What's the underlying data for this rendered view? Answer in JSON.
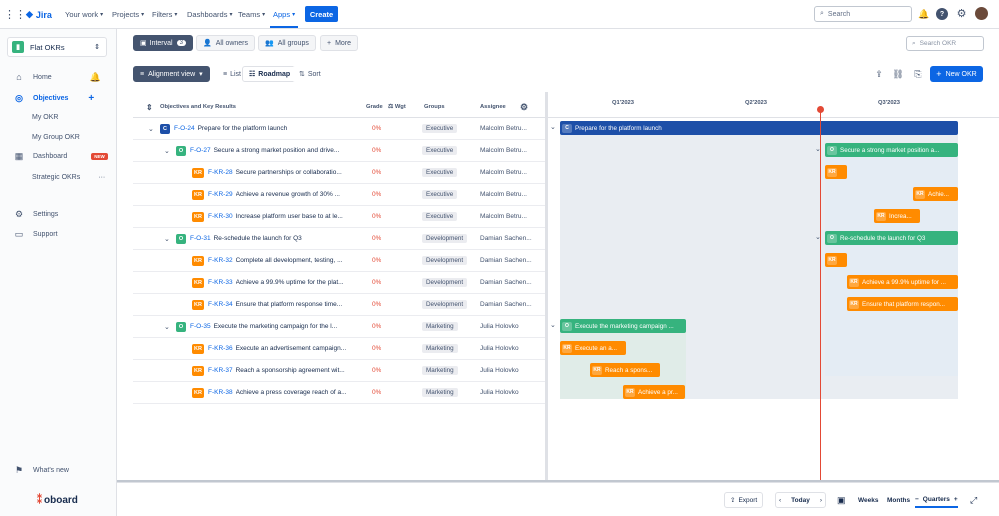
{
  "topbar": {
    "app_name": "Jira",
    "nav": [
      "Your work",
      "Projects",
      "Filters",
      "Dashboards",
      "Teams",
      "Apps"
    ],
    "create": "Create",
    "search_placeholder": "Search"
  },
  "sidebar": {
    "project": "Flat OKRs",
    "items": {
      "home": "Home",
      "objectives": "Objectives",
      "my_okr": "My OKR",
      "my_group_okr": "My Group OKR",
      "dashboard": "Dashboard",
      "dashboard_badge": "NEW",
      "strategic": "Strategic OKRs",
      "settings": "Settings",
      "support": "Support",
      "whats_new": "What's new"
    },
    "brand": "oboard"
  },
  "toolbar": {
    "interval": "Interval",
    "interval_count": "3",
    "all_owners": "All owners",
    "all_groups": "All groups",
    "more": "More",
    "search_okr": "Search OKR",
    "alignment_view": "Alignment view",
    "list": "List",
    "roadmap": "Roadmap",
    "sort": "Sort",
    "new_okr": "New OKR"
  },
  "table": {
    "headers": {
      "title": "Objectives and Key Results",
      "grade": "Grade",
      "wgt": "Wgt",
      "groups": "Groups",
      "assignee": "Assignee"
    },
    "rows": [
      {
        "type": "C",
        "key": "F-O-24",
        "title": "Prepare for the platform launch",
        "grade": "0%",
        "group": "Executive",
        "assignee": "Malcolm Betru..."
      },
      {
        "type": "O",
        "key": "F-O-27",
        "title": "Secure a strong market position and drive...",
        "grade": "0%",
        "group": "Executive",
        "assignee": "Malcolm Betru..."
      },
      {
        "type": "KR",
        "key": "F-KR-28",
        "title": "Secure partnerships or collaboratio...",
        "grade": "0%",
        "group": "Executive",
        "assignee": "Malcolm Betru..."
      },
      {
        "type": "KR",
        "key": "F-KR-29",
        "title": "Achieve a revenue growth of 30% ...",
        "grade": "0%",
        "group": "Executive",
        "assignee": "Malcolm Betru..."
      },
      {
        "type": "KR",
        "key": "F-KR-30",
        "title": "Increase platform user base to at le...",
        "grade": "0%",
        "group": "Executive",
        "assignee": "Malcolm Betru..."
      },
      {
        "type": "O",
        "key": "F-O-31",
        "title": "Re-schedule the launch for Q3",
        "grade": "0%",
        "group": "Development",
        "assignee": "Damian Sachen..."
      },
      {
        "type": "KR",
        "key": "F-KR-32",
        "title": "Complete all development, testing, ...",
        "grade": "0%",
        "group": "Development",
        "assignee": "Damian Sachen..."
      },
      {
        "type": "KR",
        "key": "F-KR-33",
        "title": "Achieve a 99.9% uptime for the plat...",
        "grade": "0%",
        "group": "Development",
        "assignee": "Damian Sachen..."
      },
      {
        "type": "KR",
        "key": "F-KR-34",
        "title": "Ensure that platform response time...",
        "grade": "0%",
        "group": "Development",
        "assignee": "Damian Sachen..."
      },
      {
        "type": "O",
        "key": "F-O-35",
        "title": "Execute the marketing campaign for the l...",
        "grade": "0%",
        "group": "Marketing",
        "assignee": "Julia Holovko"
      },
      {
        "type": "KR",
        "key": "F-KR-36",
        "title": "Execute an advertisement campaign...",
        "grade": "0%",
        "group": "Marketing",
        "assignee": "Julia Holovko"
      },
      {
        "type": "KR",
        "key": "F-KR-37",
        "title": "Reach a sponsorship agreement wit...",
        "grade": "0%",
        "group": "Marketing",
        "assignee": "Julia Holovko"
      },
      {
        "type": "KR",
        "key": "F-KR-38",
        "title": "Achieve a press coverage reach of a...",
        "grade": "0%",
        "group": "Marketing",
        "assignee": "Julia Holovko"
      }
    ]
  },
  "timeline": {
    "quarters": [
      "Q1'2023",
      "Q2'2023",
      "Q3'2023"
    ],
    "bars": [
      {
        "tag": "C",
        "label": "Prepare for the platform launch",
        "color": "#1d4fa8"
      },
      {
        "tag": "O",
        "label": "Secure a strong market position a...",
        "color": "#36b37e"
      },
      {
        "tag": "KR",
        "label": "",
        "color": "#ff8b00"
      },
      {
        "tag": "KR",
        "label": "Achie...",
        "color": "#ff8b00"
      },
      {
        "tag": "KR",
        "label": "Increa...",
        "color": "#ff8b00"
      },
      {
        "tag": "O",
        "label": "Re-schedule the launch for Q3",
        "color": "#36b37e"
      },
      {
        "tag": "KR",
        "label": "",
        "color": "#ff8b00"
      },
      {
        "tag": "KR",
        "label": "Achieve a 99.9% uptime for ...",
        "color": "#ff8b00"
      },
      {
        "tag": "KR",
        "label": "Ensure that platform respon...",
        "color": "#ff8b00"
      },
      {
        "tag": "O",
        "label": "Execute the marketing campaign ...",
        "color": "#36b37e"
      },
      {
        "tag": "KR",
        "label": "Execute an a...",
        "color": "#ff8b00"
      },
      {
        "tag": "KR",
        "label": "Reach a spons...",
        "color": "#ff8b00"
      },
      {
        "tag": "KR",
        "label": "Achieve a pr...",
        "color": "#ff8b00"
      }
    ]
  },
  "bottom": {
    "export": "Export",
    "today": "Today",
    "weeks": "Weeks",
    "months": "Months",
    "quarters": "Quarters"
  }
}
